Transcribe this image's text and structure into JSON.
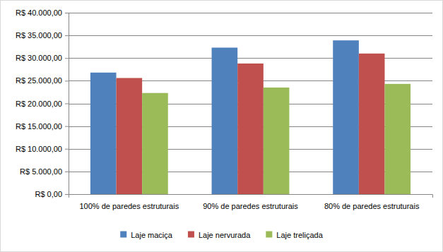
{
  "chart_data": {
    "type": "bar",
    "categories": [
      "100% de paredes estruturais",
      "90% de paredes estruturais",
      "80% de paredes estruturais"
    ],
    "series": [
      {
        "name": "Laje maciça",
        "color": "#4f81bd",
        "values": [
          26800,
          32300,
          33900
        ]
      },
      {
        "name": "Laje nervurada",
        "color": "#c0504d",
        "values": [
          25600,
          28800,
          31000
        ]
      },
      {
        "name": "Laje treliçada",
        "color": "#9bbb59",
        "values": [
          22300,
          23500,
          24300
        ]
      }
    ],
    "ylim": [
      0,
      40000
    ],
    "yticks": [
      {
        "value": 0,
        "label": "R$ 0,00"
      },
      {
        "value": 5000,
        "label": "R$ 5.000,00"
      },
      {
        "value": 10000,
        "label": "R$ 10.000,00"
      },
      {
        "value": 15000,
        "label": "R$ 15.000,00"
      },
      {
        "value": 20000,
        "label": "R$ 20.000,00"
      },
      {
        "value": 25000,
        "label": "R$ 25.000,00"
      },
      {
        "value": 30000,
        "label": "R$ 30.000,00"
      },
      {
        "value": 35000,
        "label": "R$ 35.000,00"
      },
      {
        "value": 40000,
        "label": "R$ 40.000,00"
      }
    ],
    "grid": true,
    "legend": "bottom"
  }
}
